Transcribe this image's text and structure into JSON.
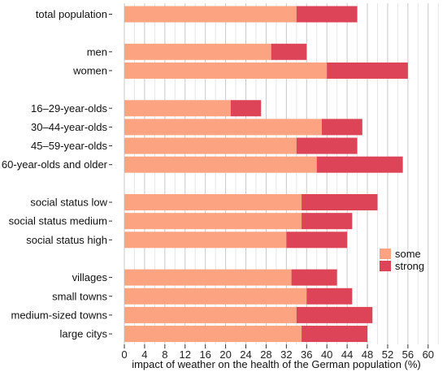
{
  "chart_data": {
    "type": "bar",
    "orientation": "horizontal",
    "stacked": true,
    "xlabel": "impact of weather on the health of the German population (%)",
    "xlim": [
      0,
      62
    ],
    "xticks": [
      0,
      4,
      8,
      12,
      16,
      20,
      24,
      28,
      32,
      36,
      40,
      44,
      48,
      52,
      56,
      60
    ],
    "grid": true,
    "legend_position": "right",
    "categories": [
      "total population",
      "",
      "men",
      "women",
      "",
      "16–29-year-olds",
      "30–44-year-olds",
      "45–59-year-olds",
      "60-year-olds and older",
      "",
      "social status low",
      "social status medium",
      "social status high",
      "",
      "villages",
      "small towns",
      "medium-sized towns",
      "large citys"
    ],
    "series": [
      {
        "name": "some",
        "color": "#FCA482",
        "values": [
          34,
          null,
          29,
          40,
          null,
          21,
          39,
          34,
          38,
          null,
          35,
          35,
          32,
          null,
          33,
          36,
          34,
          35
        ]
      },
      {
        "name": "strong",
        "color": "#DE4458",
        "values": [
          12,
          null,
          7,
          16,
          null,
          6,
          8,
          12,
          17,
          null,
          15,
          10,
          12,
          null,
          9,
          9,
          15,
          13
        ]
      }
    ]
  }
}
